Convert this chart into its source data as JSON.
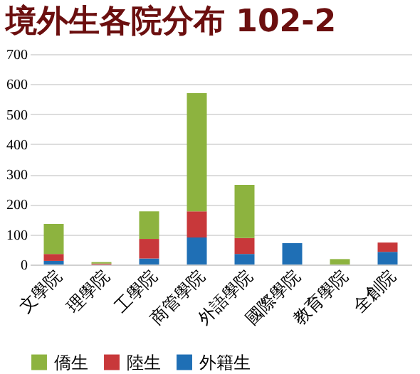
{
  "chart_data": {
    "type": "bar",
    "title": "境外生各院分布 102-2",
    "stacked": true,
    "categories": [
      "文學院",
      "理學院",
      "工學院",
      "商管學院",
      "外語學院",
      "國際學院",
      "教育學院",
      "全創院"
    ],
    "series": [
      {
        "name": "外籍生",
        "color": "#1f6fb5",
        "values": [
          12,
          0,
          20,
          90,
          35,
          71,
          0,
          42
        ]
      },
      {
        "name": "陸生",
        "color": "#c8383a",
        "values": [
          23,
          3,
          65,
          87,
          53,
          0,
          0,
          31
        ]
      },
      {
        "name": "僑生",
        "color": "#8db33f",
        "values": [
          100,
          5,
          92,
          393,
          177,
          0,
          18,
          0
        ]
      }
    ],
    "ylim": [
      0,
      700
    ],
    "yticks": [
      0,
      100,
      200,
      300,
      400,
      500,
      600,
      700
    ],
    "grid": "y",
    "legend": "bottom"
  }
}
